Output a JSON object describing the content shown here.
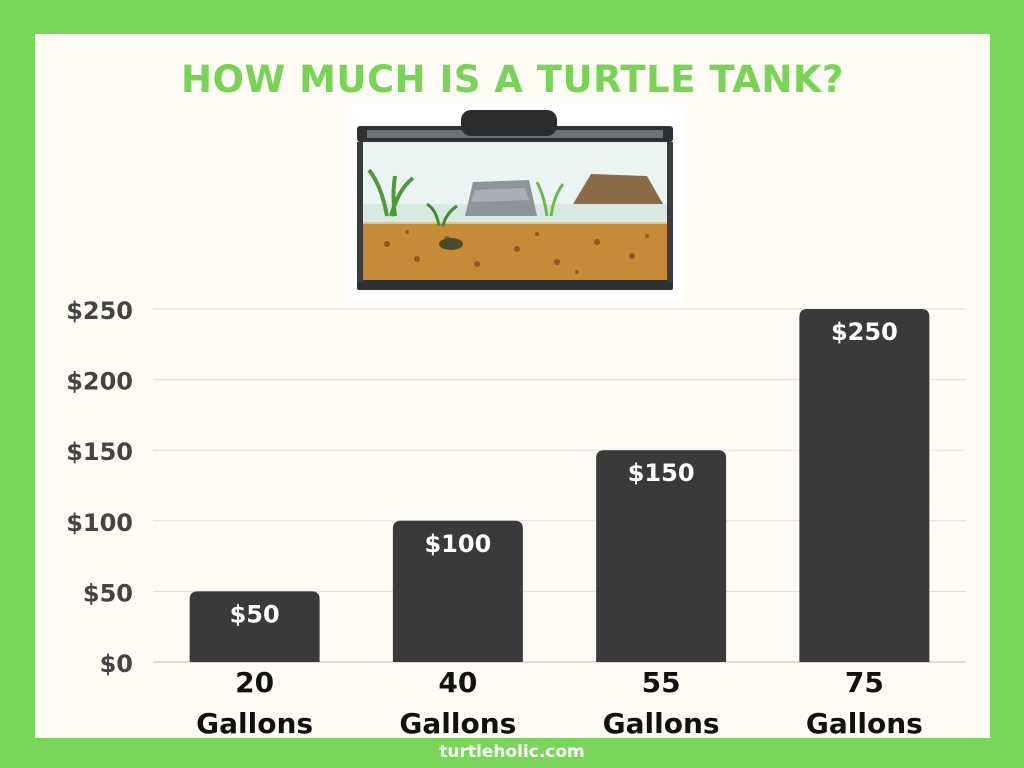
{
  "title": "HOW MUCH IS A TURTLE TANK?",
  "footer": "turtleholic.com",
  "illustration": "turtle tank aquarium",
  "colors": {
    "background": "#7ad65b",
    "panel": "#fffcf6",
    "title": "#77d455",
    "bar": "#3a3a3a",
    "bar_label": "#ffffff",
    "axis_text": "#444444",
    "category_text": "#111111",
    "grid": "#dddddd"
  },
  "chart_data": {
    "type": "bar",
    "categories": [
      "20\nGallons",
      "40\nGallons",
      "55\nGallons",
      "75\nGallons"
    ],
    "values": [
      50,
      100,
      150,
      250
    ],
    "data_labels": [
      "$50",
      "$100",
      "$150",
      "$250"
    ],
    "y_ticks": [
      "$0",
      "$50",
      "$100",
      "$150",
      "$200",
      "$250"
    ],
    "y_tick_values": [
      0,
      50,
      100,
      150,
      200,
      250
    ],
    "ylim": [
      0,
      250
    ],
    "grid": true,
    "legend": "none"
  }
}
